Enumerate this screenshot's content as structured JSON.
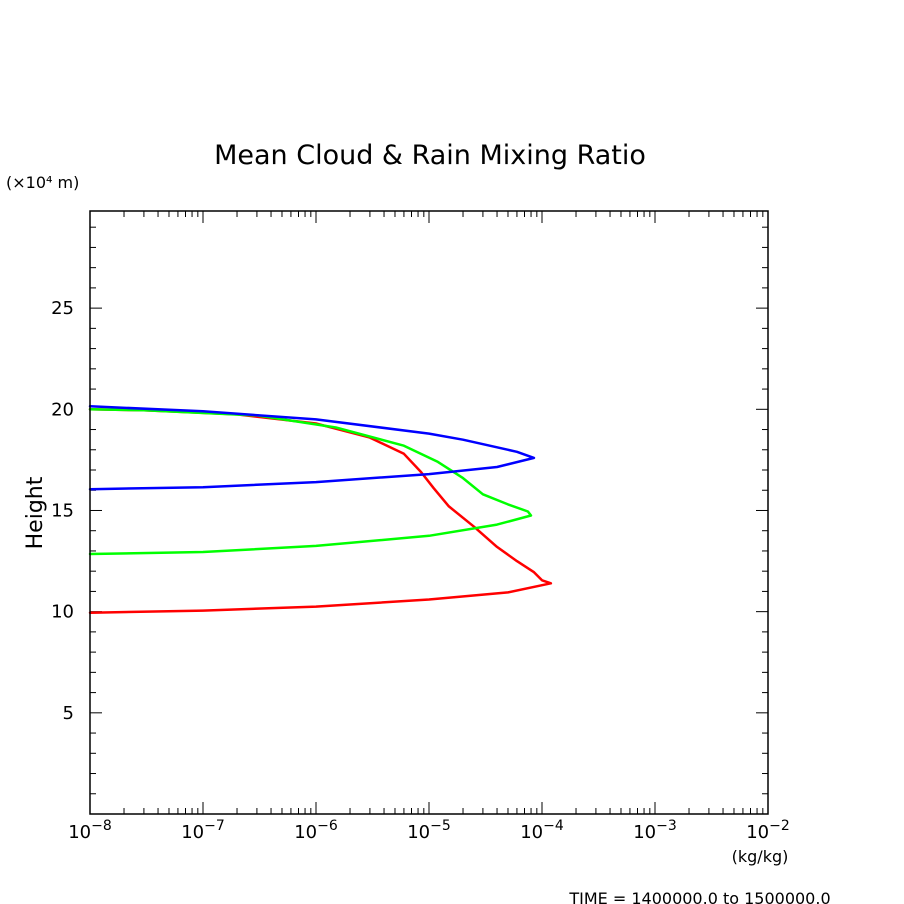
{
  "chart_data": {
    "type": "line",
    "title": "Mean Cloud & Rain Mixing Ratio",
    "ylabel": "Height",
    "y_unit_label": "(×10⁴ m)",
    "x_unit_label": "(kg/kg)",
    "footer": "TIME = 1400000.0 to 1500000.0",
    "xscale": "log",
    "xlim": [
      1e-08,
      0.01
    ],
    "ylim": [
      0,
      29.8
    ],
    "x_tick_values": [
      1e-08,
      1e-07,
      1e-06,
      1e-05,
      0.0001,
      0.001,
      0.01
    ],
    "x_tick_labels": [
      {
        "base": "10",
        "exp": "−8"
      },
      {
        "base": "10",
        "exp": "−7"
      },
      {
        "base": "10",
        "exp": "−6"
      },
      {
        "base": "10",
        "exp": "−5"
      },
      {
        "base": "10",
        "exp": "−4"
      },
      {
        "base": "10",
        "exp": "−3"
      },
      {
        "base": "10",
        "exp": "−2"
      }
    ],
    "y_ticks": [
      5,
      10,
      15,
      20,
      25
    ],
    "y_tick_labels": [
      "5",
      "10",
      "15",
      "20",
      "25"
    ],
    "grid": false,
    "series": [
      {
        "color": "#ff0000",
        "points": [
          [
            1e-08,
            9.95
          ],
          [
            1e-07,
            10.05
          ],
          [
            1e-06,
            10.25
          ],
          [
            1e-05,
            10.6
          ],
          [
            5e-05,
            10.95
          ],
          [
            0.00012,
            11.4
          ],
          [
            0.0001,
            11.55
          ],
          [
            8.5e-05,
            11.95
          ],
          [
            6e-05,
            12.5
          ],
          [
            4e-05,
            13.2
          ],
          [
            2.5e-05,
            14.2
          ],
          [
            1.5e-05,
            15.2
          ],
          [
            1.1e-05,
            16.1
          ],
          [
            8.5e-06,
            16.9
          ],
          [
            6e-06,
            17.8
          ],
          [
            3e-06,
            18.6
          ],
          [
            1e-06,
            19.3
          ],
          [
            2e-07,
            19.75
          ],
          [
            3e-08,
            19.95
          ],
          [
            1e-08,
            20.0
          ]
        ]
      },
      {
        "color": "#00ff00",
        "points": [
          [
            1e-08,
            12.85
          ],
          [
            1e-07,
            12.95
          ],
          [
            1e-06,
            13.25
          ],
          [
            1e-05,
            13.75
          ],
          [
            4e-05,
            14.3
          ],
          [
            8e-05,
            14.75
          ],
          [
            7.5e-05,
            14.95
          ],
          [
            5e-05,
            15.3
          ],
          [
            3e-05,
            15.8
          ],
          [
            2e-05,
            16.6
          ],
          [
            1.2e-05,
            17.4
          ],
          [
            6e-06,
            18.2
          ],
          [
            1.5e-06,
            19.1
          ],
          [
            3e-07,
            19.7
          ],
          [
            3e-08,
            19.95
          ],
          [
            1e-08,
            20.0
          ]
        ]
      },
      {
        "color": "#0000ff",
        "points": [
          [
            1e-08,
            16.05
          ],
          [
            1e-07,
            16.15
          ],
          [
            1e-06,
            16.4
          ],
          [
            1e-05,
            16.8
          ],
          [
            4e-05,
            17.15
          ],
          [
            8.5e-05,
            17.6
          ],
          [
            6e-05,
            17.9
          ],
          [
            2e-05,
            18.5
          ],
          [
            1e-05,
            18.8
          ],
          [
            1e-06,
            19.5
          ],
          [
            1e-07,
            19.9
          ],
          [
            1e-08,
            20.15
          ]
        ]
      }
    ]
  }
}
